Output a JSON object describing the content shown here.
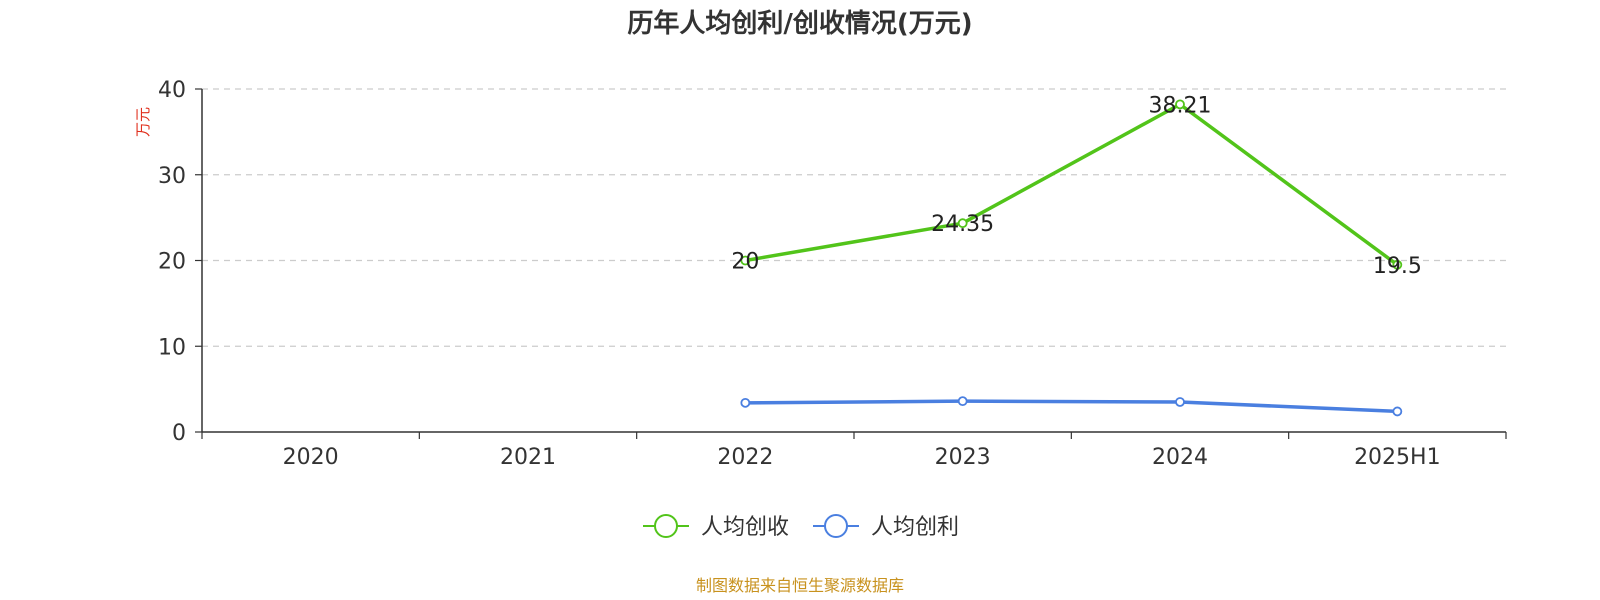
{
  "chart_data": {
    "type": "line",
    "title": "历年人均创利/创收情况(万元)",
    "ylabel": "万元",
    "categories": [
      "2020",
      "2021",
      "2022",
      "2023",
      "2024",
      "2025H1"
    ],
    "ylim": [
      0,
      40
    ],
    "yticks": [
      0,
      10,
      20,
      30,
      40
    ],
    "grid": true,
    "legend_position": "bottom-center",
    "series": [
      {
        "name": "人均创收",
        "color": "#52c41a",
        "values": [
          null,
          null,
          20,
          24.35,
          38.21,
          19.5
        ],
        "labels": [
          null,
          null,
          "20",
          "24.35",
          "38.21",
          "19.5"
        ]
      },
      {
        "name": "人均创利",
        "color": "#4a7fe0",
        "values": [
          null,
          null,
          3.4,
          3.6,
          3.5,
          2.4
        ],
        "labels": [
          null,
          null,
          null,
          null,
          null,
          null
        ]
      }
    ],
    "unit_color": "#e0301e"
  },
  "footer": {
    "source": "制图数据来自恒生聚源数据库",
    "source_color": "#c8921e"
  }
}
